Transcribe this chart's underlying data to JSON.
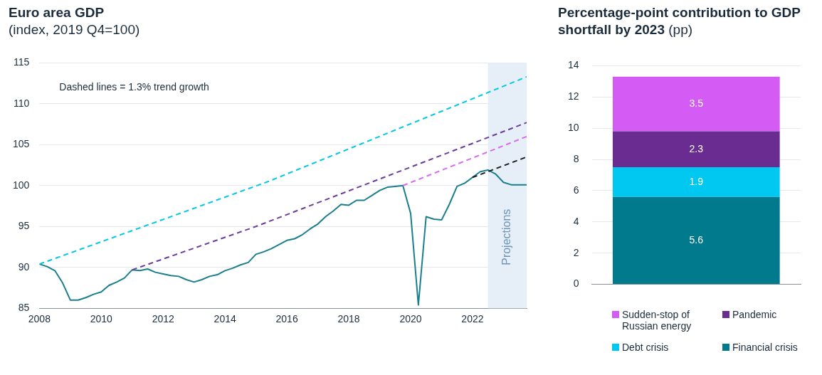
{
  "chart_data": [
    {
      "type": "line",
      "title": "Euro area GDP",
      "subtitle": "(index, 2019 Q4=100)",
      "annotations": [
        "Dashed lines = 1.3% trend growth"
      ],
      "xlim": [
        2008,
        2023.75
      ],
      "xticks": [
        2008,
        2010,
        2012,
        2014,
        2016,
        2018,
        2020,
        2022
      ],
      "ylim": [
        85,
        115
      ],
      "yticks": [
        85,
        90,
        95,
        100,
        105,
        110,
        115
      ],
      "grid": "y",
      "legend": false,
      "marker": "none",
      "bands": [
        {
          "axis": "x",
          "from": 2022.5,
          "to": 2023.75,
          "label": "Projections",
          "color": "#e6eff8"
        }
      ],
      "series": [
        {
          "color": "#00c8e6",
          "line_style": "dashed",
          "x": [
            2008,
            2015.4,
            2023.75
          ],
          "values": [
            90.4,
            100.5,
            113.3
          ]
        },
        {
          "color": "#6a3d9a",
          "line_style": "dashed",
          "x": [
            2011,
            2015,
            2023.75
          ],
          "values": [
            89.7,
            95.0,
            107.7
          ]
        },
        {
          "color": "#d66cf0",
          "line_style": "dashed",
          "x": [
            2019.75,
            2023.75
          ],
          "values": [
            100.0,
            106.0
          ]
        },
        {
          "color": "#1a1a1a",
          "line_style": "dashed",
          "x": [
            2022,
            2023.75
          ],
          "values": [
            101.0,
            103.5
          ]
        },
        {
          "color": "#1a7f8c",
          "line_style": "solid",
          "x": [
            2008,
            2008.25,
            2008.5,
            2008.75,
            2009,
            2009.25,
            2009.5,
            2009.75,
            2010,
            2010.25,
            2010.5,
            2010.75,
            2011,
            2011.25,
            2011.5,
            2011.75,
            2012,
            2012.25,
            2012.5,
            2012.75,
            2013,
            2013.25,
            2013.5,
            2013.75,
            2014,
            2014.25,
            2014.5,
            2014.75,
            2015,
            2015.25,
            2015.5,
            2015.75,
            2016,
            2016.25,
            2016.5,
            2016.75,
            2017,
            2017.25,
            2017.5,
            2017.75,
            2018,
            2018.25,
            2018.5,
            2018.75,
            2019,
            2019.25,
            2019.5,
            2019.75,
            2020,
            2020.25,
            2020.5,
            2020.75,
            2021,
            2021.25,
            2021.5,
            2021.75,
            2022,
            2022.25,
            2022.5,
            2022.75,
            2023,
            2023.25,
            2023.5,
            2023.75
          ],
          "values": [
            90.4,
            90.1,
            89.6,
            88.1,
            86.0,
            86.0,
            86.3,
            86.7,
            87.0,
            87.8,
            88.2,
            88.7,
            89.7,
            89.6,
            89.8,
            89.4,
            89.2,
            89.0,
            88.9,
            88.5,
            88.2,
            88.5,
            88.9,
            89.1,
            89.6,
            89.9,
            90.3,
            90.6,
            91.6,
            91.9,
            92.3,
            92.8,
            93.3,
            93.5,
            94.0,
            94.7,
            95.3,
            96.2,
            96.9,
            97.7,
            97.6,
            98.2,
            98.2,
            98.8,
            99.4,
            99.8,
            99.9,
            100.0,
            96.6,
            85.4,
            96.2,
            95.9,
            95.8,
            97.7,
            99.9,
            100.3,
            101.0,
            101.7,
            101.9,
            101.4,
            100.4,
            100.1,
            100.1,
            100.1
          ]
        }
      ]
    },
    {
      "type": "bar",
      "stacked": true,
      "title": "Percentage-point contribution to GDP shortfall by 2023",
      "subtitle": "(pp)",
      "categories": [
        null
      ],
      "ylim": [
        0,
        14
      ],
      "yticks": [
        0,
        2,
        4,
        6,
        8,
        10,
        12,
        14
      ],
      "grid": "y",
      "legend": "bottom",
      "data_labels": true,
      "series": [
        {
          "name": "Financial crisis",
          "color": "#007a8c",
          "values": [
            5.6
          ]
        },
        {
          "name": "Debt crisis",
          "color": "#00c8f0",
          "values": [
            1.9
          ]
        },
        {
          "name": "Pandemic",
          "color": "#6a2c91",
          "values": [
            2.3
          ]
        },
        {
          "name": "Sudden-stop of Russian energy",
          "color": "#d45cf5",
          "values": [
            3.5
          ]
        }
      ]
    }
  ]
}
